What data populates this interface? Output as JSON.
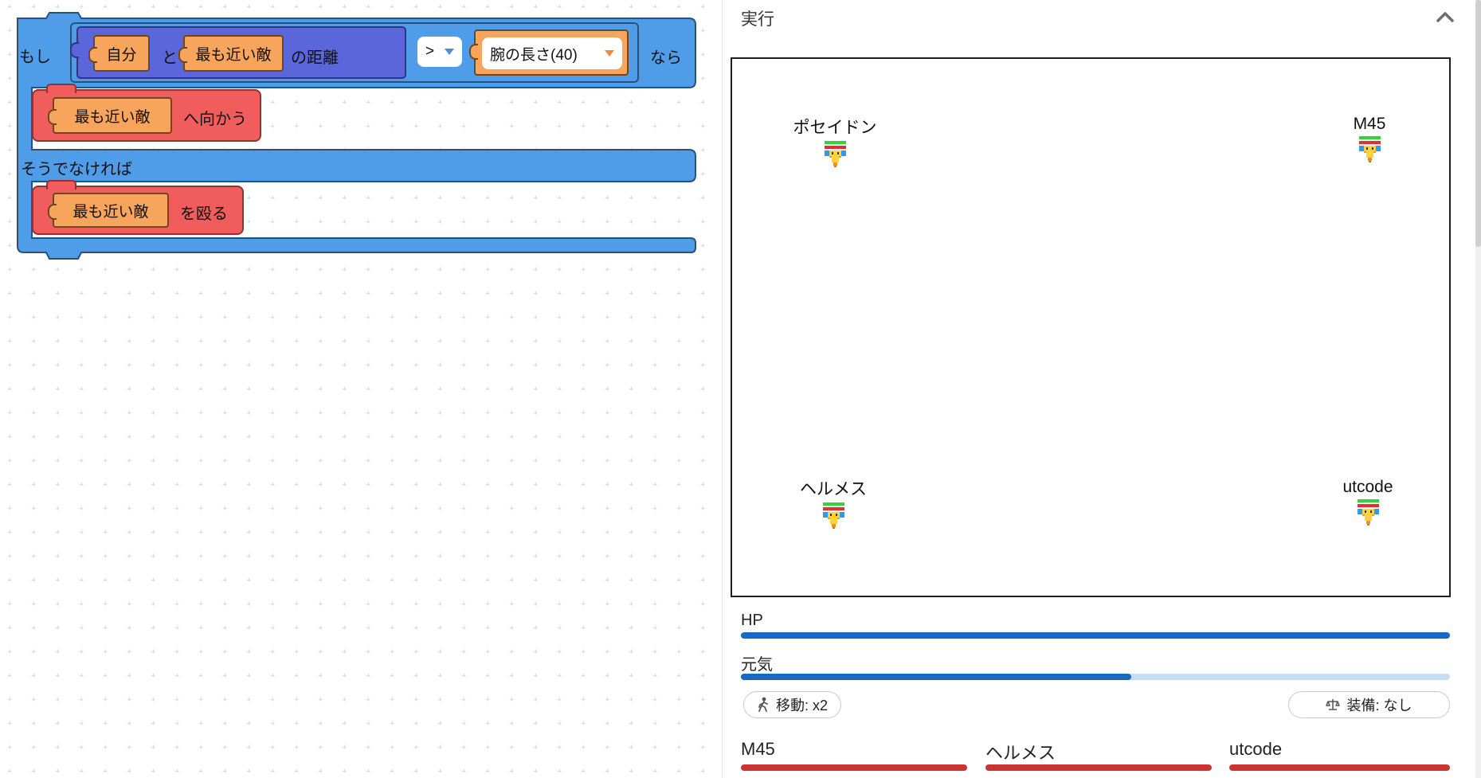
{
  "workspace": {
    "if_block": {
      "if_label": "もし",
      "then_label": "なら",
      "else_label": "そうでなければ",
      "condition": {
        "self_label": "自分",
        "and_label": "と",
        "nearest_enemy_label": "最も近い敵",
        "distance_label": "の距離",
        "operator": ">",
        "value_label": "腕の長さ(40)"
      },
      "then_statement": {
        "target": "最も近い敵",
        "action": "へ向かう"
      },
      "else_statement": {
        "target": "最も近い敵",
        "action": "を殴る"
      }
    }
  },
  "run_panel": {
    "title": "実行",
    "arena": {
      "characters": [
        {
          "name": "ポセイドン"
        },
        {
          "name": "M45"
        },
        {
          "name": "ヘルメス"
        },
        {
          "name": "utcode"
        }
      ]
    },
    "player": {
      "hp_label": "HP",
      "hp_percent": 100,
      "energy_label": "元気",
      "energy_percent": 55,
      "move_badge": "移動: x2",
      "equip_badge": "装備: なし"
    },
    "enemies": [
      {
        "name": "M45",
        "hp_percent": 100
      },
      {
        "name": "ヘルメス",
        "hp_percent": 100
      },
      {
        "name": "utcode",
        "hp_percent": 100
      }
    ],
    "colors": {
      "hp_bar": "#1769c4",
      "energy_fill": "#1769c4",
      "energy_track": "#c7ddf6",
      "enemy_bar": "#cc3434",
      "char_hp_green": "#35d435",
      "char_energy_red": "#e03030",
      "block_blue": "#4f9ce8",
      "block_indigo": "#5a66d9",
      "block_orange": "#f7a45c",
      "block_red": "#f15d5d"
    }
  }
}
